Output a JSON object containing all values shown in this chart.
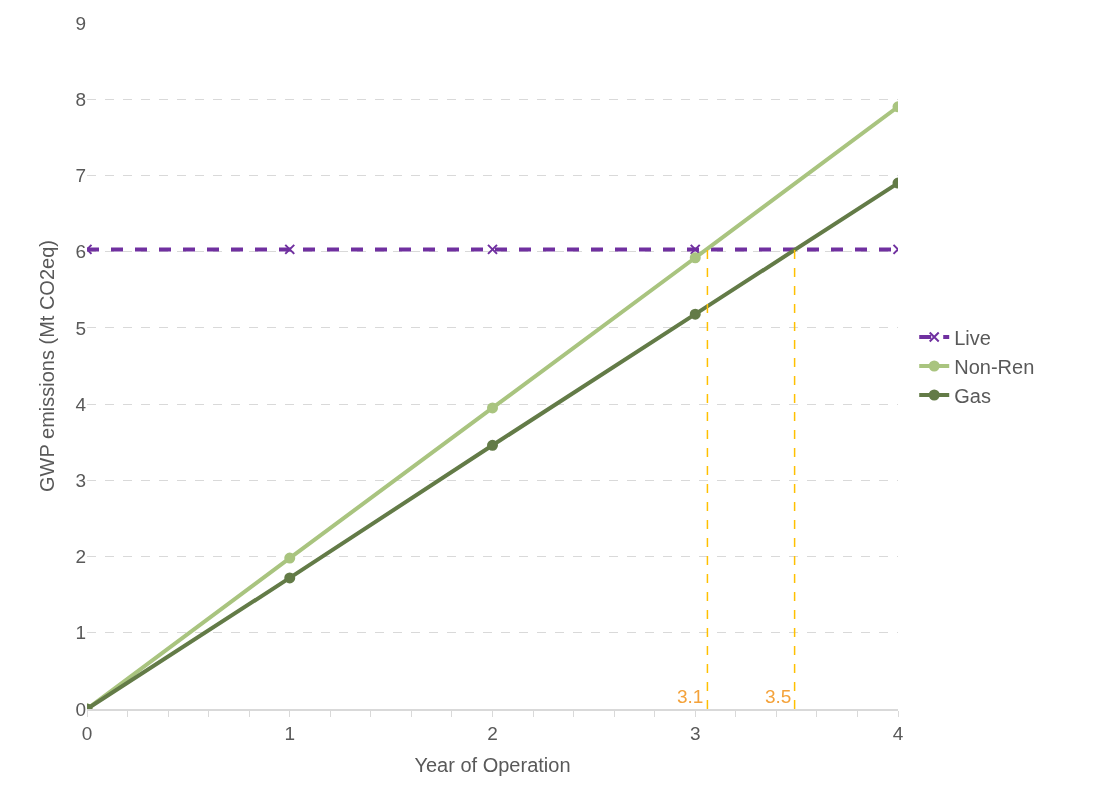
{
  "chart_data": {
    "type": "line",
    "xlabel": "Year of Operation",
    "ylabel": "GWP emissions (Mt CO2eq)",
    "x": [
      0,
      1,
      2,
      3,
      4
    ],
    "series": [
      {
        "name": "Live",
        "color": "#7030a0",
        "values": [
          6.03,
          6.03,
          6.03,
          6.03,
          6.03
        ],
        "marker": "cross",
        "line_style": "dashed"
      },
      {
        "name": "Non-Ren",
        "color": "#a9c47f",
        "values": [
          0,
          1.98,
          3.95,
          5.92,
          7.9
        ],
        "marker": "circle",
        "line_style": "solid"
      },
      {
        "name": "Gas",
        "color": "#637b47",
        "values": [
          0,
          1.72,
          3.46,
          5.18,
          6.9
        ],
        "marker": "circle",
        "line_style": "solid"
      }
    ],
    "xlim": [
      0,
      4
    ],
    "xticks": [
      0,
      {
        "value": 0.2,
        "label": null
      },
      {
        "value": 0.4,
        "label": null
      },
      {
        "value": 0.6,
        "label": null
      },
      {
        "value": 0.8,
        "label": null
      },
      1,
      {
        "value": 1.2,
        "label": null
      },
      {
        "value": 1.4,
        "label": null
      },
      {
        "value": 1.6,
        "label": null
      },
      {
        "value": 1.8,
        "label": null
      },
      2,
      {
        "value": 2.2,
        "label": null
      },
      {
        "value": 2.4,
        "label": null
      },
      {
        "value": 2.6,
        "label": null
      },
      {
        "value": 2.8,
        "label": null
      },
      3,
      {
        "value": 3.2,
        "label": null
      },
      {
        "value": 3.4,
        "label": null
      },
      {
        "value": 3.6,
        "label": null
      },
      {
        "value": 3.8,
        "label": null
      },
      4
    ],
    "ylim": [
      0,
      9
    ],
    "yticks": [
      0,
      1,
      2,
      3,
      4,
      5,
      6,
      7,
      8,
      9
    ],
    "ref_lines": [
      {
        "axis": "x",
        "value": 3.06,
        "label": "3.1",
        "color": "#ffc000",
        "line_style": "dashed"
      },
      {
        "axis": "x",
        "value": 3.49,
        "label": "3.5",
        "color": "#ffc000",
        "line_style": "dashed"
      }
    ],
    "grid": "y",
    "legend": "right"
  }
}
